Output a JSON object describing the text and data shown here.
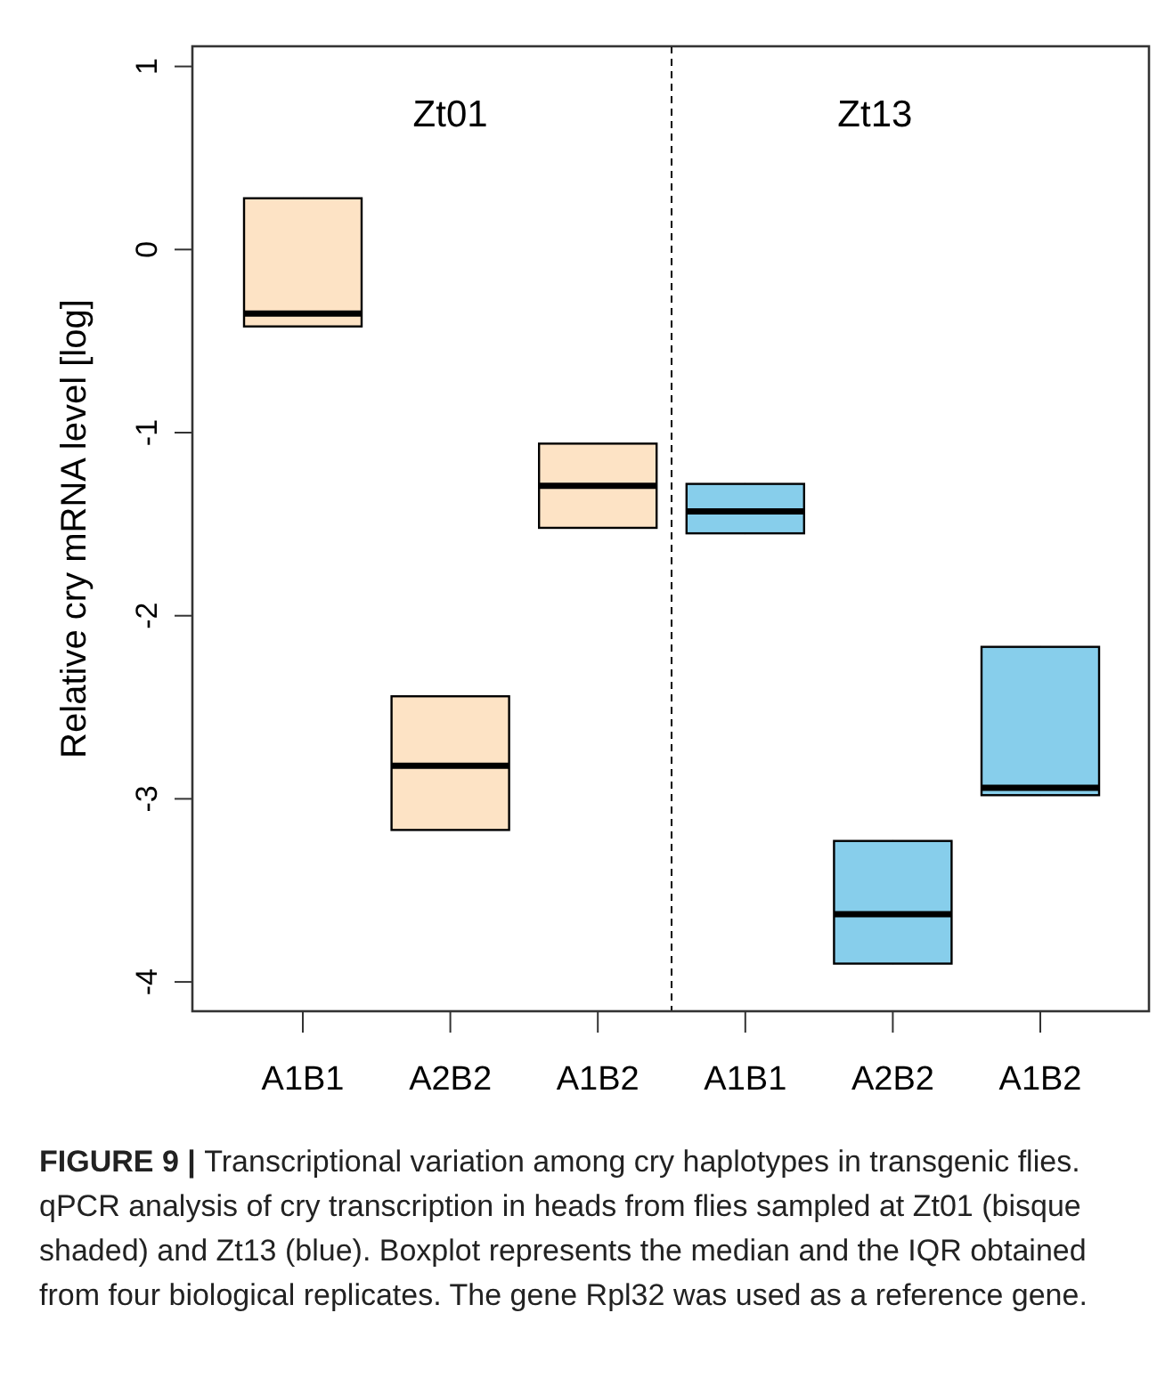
{
  "chart_data": {
    "type": "box",
    "ylabel": "Relative cry mRNA level [log]",
    "categories": [
      "A1B1",
      "A2B2",
      "A1B2",
      "A1B1",
      "A2B2",
      "A1B2"
    ],
    "boxes": [
      {
        "low": -0.42,
        "q1": -0.42,
        "median": -0.35,
        "q3": 0.28,
        "high": 0.28
      },
      {
        "low": -3.17,
        "q1": -3.17,
        "median": -2.82,
        "q3": -2.44,
        "high": -2.44
      },
      {
        "low": -1.52,
        "q1": -1.52,
        "median": -1.29,
        "q3": -1.06,
        "high": -1.06
      },
      {
        "low": -1.55,
        "q1": -1.55,
        "median": -1.43,
        "q3": -1.28,
        "high": -1.28
      },
      {
        "low": -3.9,
        "q1": -3.9,
        "median": -3.63,
        "q3": -3.23,
        "high": -3.23
      },
      {
        "low": -2.98,
        "q1": -2.98,
        "median": -2.94,
        "q3": -2.17,
        "high": -2.17
      }
    ],
    "colors": [
      "#fde3c5",
      "#fde3c5",
      "#fde3c5",
      "#87ceeb",
      "#87ceeb",
      "#87ceeb"
    ],
    "ylim": [
      -4.16,
      1.11
    ],
    "yticks": [
      -4,
      -3,
      -2,
      -1,
      0,
      1
    ],
    "grid": false,
    "annotations": [
      "Zt01",
      "Zt13",
      "FIGURE 9 |",
      "Transcriptional variation among cry haplotypes in transgenic flies. qPCR analysis of cry transcription in heads from flies sampled at Zt01 (bisque shaded) and Zt13 (blue). Boxplot represents the median and the IQR obtained from four biological replicates. The gene Rpl32 was used as a reference gene."
    ]
  }
}
